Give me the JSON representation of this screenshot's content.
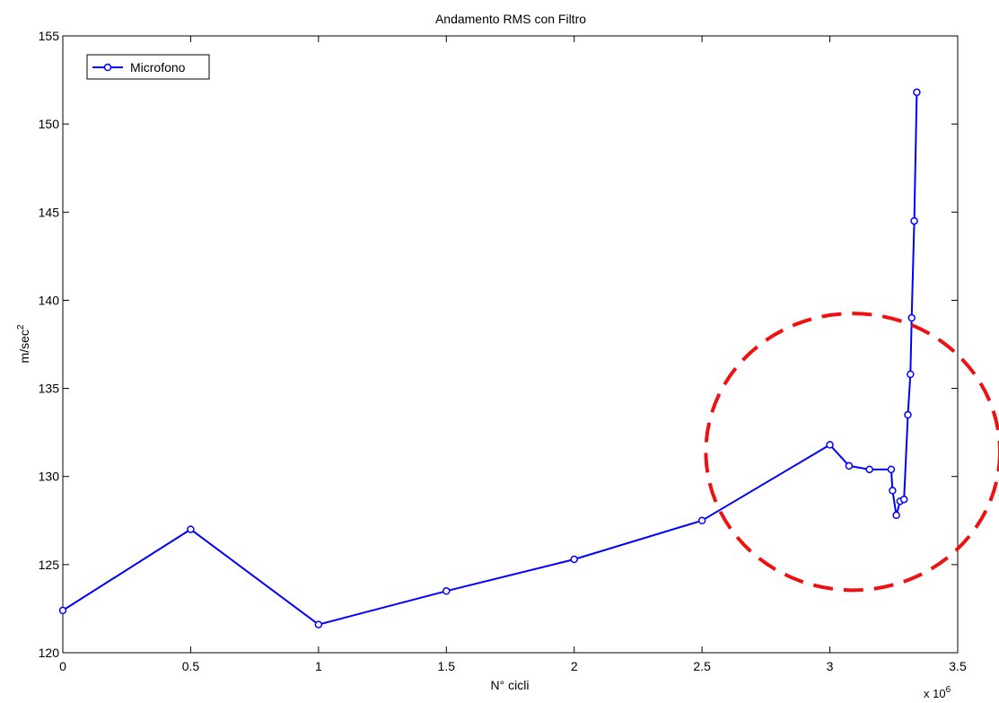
{
  "chart_data": {
    "type": "line",
    "title": "Andamento RMS con Filtro",
    "xlabel": "N° cicli",
    "ylabel_base": "m/sec",
    "ylabel_sup": "2",
    "x_multiplier_base": "x 10",
    "x_multiplier_exp": "6",
    "xlim": [
      0,
      3.5
    ],
    "ylim": [
      120,
      155
    ],
    "xticks": [
      0,
      0.5,
      1,
      1.5,
      2,
      2.5,
      3,
      3.5
    ],
    "xtick_labels": [
      "0",
      "0.5",
      "1",
      "1.5",
      "2",
      "2.5",
      "3",
      "3.5"
    ],
    "yticks": [
      120,
      125,
      130,
      135,
      140,
      145,
      150,
      155
    ],
    "ytick_labels": [
      "120",
      "125",
      "130",
      "135",
      "140",
      "145",
      "150",
      "155"
    ],
    "grid": false,
    "legend_position": "top-left",
    "series": [
      {
        "name": "Microfono",
        "color": "#0000ff",
        "marker": "circle",
        "x": [
          0,
          0.5,
          1,
          1.5,
          2,
          2.5,
          3,
          3.075,
          3.155,
          3.24,
          3.245,
          3.26,
          3.275,
          3.29,
          3.305,
          3.315,
          3.32,
          3.33,
          3.34
        ],
        "y": [
          122.4,
          127.0,
          121.6,
          123.5,
          125.3,
          127.5,
          131.8,
          130.6,
          130.4,
          130.4,
          129.2,
          127.8,
          128.6,
          128.7,
          133.5,
          135.8,
          139.0,
          144.5,
          151.8
        ]
      }
    ],
    "annotations": [
      {
        "type": "dashed-circle",
        "color": "#ee1111",
        "center": [
          3.09,
          131.4
        ],
        "radius_x": 0.575,
        "radius_y": 7.85
      }
    ]
  }
}
